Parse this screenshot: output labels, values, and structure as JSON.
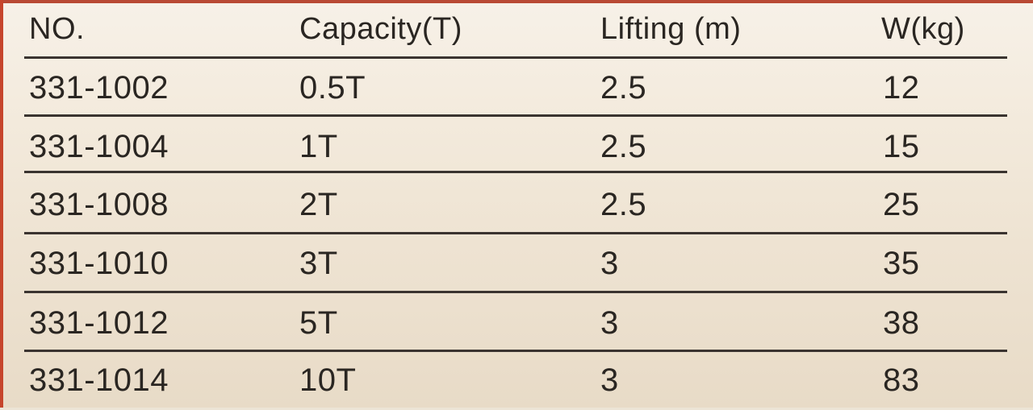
{
  "table": {
    "headers": [
      "NO.",
      "Capacity(T)",
      "Lifting (m)",
      "W(kg)"
    ],
    "rows": [
      [
        "331-1002",
        "0.5T",
        "2.5",
        "12"
      ],
      [
        "331-1004",
        "1T",
        "2.5",
        "15"
      ],
      [
        "331-1008",
        "2T",
        "2.5",
        "25"
      ],
      [
        "331-1010",
        "3T",
        "3",
        "35"
      ],
      [
        "331-1012",
        "5T",
        "3",
        "38"
      ],
      [
        "331-1014",
        "10T",
        "3",
        "83"
      ]
    ]
  }
}
